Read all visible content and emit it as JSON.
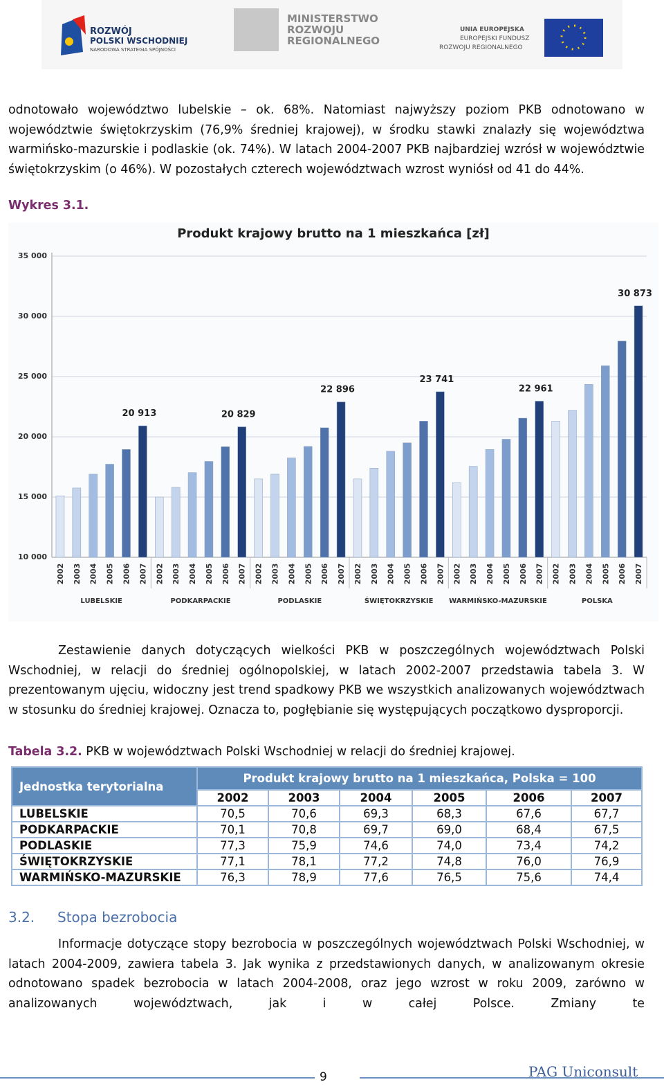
{
  "header": {
    "logo_left": {
      "line1": "ROZWÓJ",
      "line2": "POLSKI WSCHODNIEJ",
      "line3": "NARODOWA STRATEGIA SPÓJNOŚCI"
    },
    "logo_center": {
      "line1": "MINISTERSTWO",
      "line2": "ROZWOJU",
      "line3": "REGIONALNEGO"
    },
    "logo_right": {
      "line1": "UNIA EUROPEJSKA",
      "line2": "EUROPEJSKI FUNDUSZ",
      "line3": "ROZWOJU REGIONALNEGO"
    }
  },
  "paragraphs": [
    "odnotowało województwo lubelskie – ok. 68%. Natomiast najwyższy poziom PKB odnotowano w województwie świętokrzyskim (76,9% średniej krajowej), w środku stawki znalazły się województwa warmińsko-mazurskie i podlaskie (ok. 74%). W latach 2004-2007 PKB najbardziej wzrósł w województwie świętokrzyskim (o 46%). W pozostałych czterech województwach wzrost wyniósł od 41 do 44%.",
    "Zestawienie danych dotyczących wielkości PKB w poszczególnych województwach Polski Wschodniej, w relacji do średniej ogólnopolskiej, w latach 2002-2007 przedstawia tabela 3. W prezentowanym ujęciu, widoczny jest trend spadkowy PKB we wszystkich analizowanych województwach w stosunku do średniej krajowej. Oznacza to, pogłębianie się występujących początkowo dysproporcji.",
    "Informacje dotyczące stopy bezrobocia w poszczególnych województwach Polski Wschodniej, w latach 2004-2009, zawiera tabela 3. Jak wynika z przedstawionych danych, w analizowanym okresie odnotowano spadek bezrobocia w latach 2004-2008, oraz jego wzrost w roku 2009, zarówno w analizowanych województwach, jak i w całej Polsce. Zmiany te"
  ],
  "figure_caption": "Wykres 3.1.",
  "chart_data": {
    "type": "bar",
    "title": "Produkt krajowy brutto na 1 mieszkańca [zł]",
    "ylim": [
      10000,
      35000
    ],
    "yticks": [
      {
        "value": 10000,
        "label": "10 000"
      },
      {
        "value": 15000,
        "label": "15 000"
      },
      {
        "value": 20000,
        "label": "20 000"
      },
      {
        "value": 25000,
        "label": "25 000"
      },
      {
        "value": 30000,
        "label": "30 000"
      },
      {
        "value": 35000,
        "label": "35 000"
      }
    ],
    "grid": true,
    "colors": [
      "#dbe5f3",
      "#c3d4ec",
      "#a3bde2",
      "#7c9ccb",
      "#4e72a9",
      "#213f78"
    ],
    "groups": [
      {
        "name": "LUBELSKIE",
        "categories": [
          "2002",
          "2003",
          "2004",
          "2005",
          "2006",
          "2007"
        ],
        "values": [
          15100,
          15750,
          16900,
          17730,
          18950,
          20913
        ],
        "value_labels": [
          null,
          null,
          null,
          null,
          null,
          "20 913"
        ]
      },
      {
        "name": "PODKARPACKIE",
        "categories": [
          "2002",
          "2003",
          "2004",
          "2005",
          "2006",
          "2007"
        ],
        "values": [
          15000,
          15800,
          17030,
          17960,
          19180,
          20829
        ],
        "value_labels": [
          null,
          null,
          null,
          null,
          null,
          "20 829"
        ]
      },
      {
        "name": "PODLASKIE",
        "categories": [
          "2002",
          "2003",
          "2004",
          "2005",
          "2006",
          "2007"
        ],
        "values": [
          16500,
          16900,
          18250,
          19200,
          20750,
          22896
        ],
        "value_labels": [
          null,
          null,
          null,
          null,
          null,
          "22 896"
        ]
      },
      {
        "name": "ŚWIĘTOKRZYSKIE",
        "categories": [
          "2002",
          "2003",
          "2004",
          "2005",
          "2006",
          "2007"
        ],
        "values": [
          16500,
          17400,
          18800,
          19500,
          21300,
          23741
        ],
        "value_labels": [
          null,
          null,
          null,
          null,
          null,
          "23 741"
        ]
      },
      {
        "name": "WARMIŃSKO-MAZURSKIE",
        "categories": [
          "2002",
          "2003",
          "2004",
          "2005",
          "2006",
          "2007"
        ],
        "values": [
          16200,
          17550,
          18950,
          19800,
          21550,
          22961
        ],
        "value_labels": [
          null,
          null,
          null,
          null,
          null,
          "22 961"
        ]
      },
      {
        "name": "POLSKA",
        "categories": [
          "2002",
          "2003",
          "2004",
          "2005",
          "2006",
          "2007"
        ],
        "values": [
          21300,
          22200,
          24350,
          25900,
          27950,
          30873
        ],
        "value_labels": [
          null,
          null,
          null,
          null,
          null,
          "30 873"
        ]
      }
    ]
  },
  "table_caption": {
    "label": "Tabela 3.2.",
    "text": "PKB w województwach Polski Wschodniej w relacji do średniej krajowej."
  },
  "table": {
    "row_header": "Jednostka terytorialna",
    "group_header": "Produkt krajowy brutto na 1 mieszkańca, Polska = 100",
    "columns": [
      "2002",
      "2003",
      "2004",
      "2005",
      "2006",
      "2007"
    ],
    "rows": [
      [
        "LUBELSKIE",
        "70,5",
        "70,6",
        "69,3",
        "68,3",
        "67,6",
        "67,7"
      ],
      [
        "PODKARPACKIE",
        "70,1",
        "70,8",
        "69,7",
        "69,0",
        "68,4",
        "67,5"
      ],
      [
        "PODLASKIE",
        "77,3",
        "75,9",
        "74,6",
        "74,0",
        "73,4",
        "74,2"
      ],
      [
        "ŚWIĘTOKRZYSKIE",
        "77,1",
        "78,1",
        "77,2",
        "74,8",
        "76,0",
        "76,9"
      ],
      [
        "WARMIŃSKO-MAZURSKIE",
        "76,3",
        "78,9",
        "77,6",
        "76,5",
        "75,6",
        "74,4"
      ]
    ]
  },
  "section": {
    "number": "3.2.",
    "title": "Stopa bezrobocia"
  },
  "footer": {
    "page": "9",
    "brand": "PAG Uniconsult"
  }
}
